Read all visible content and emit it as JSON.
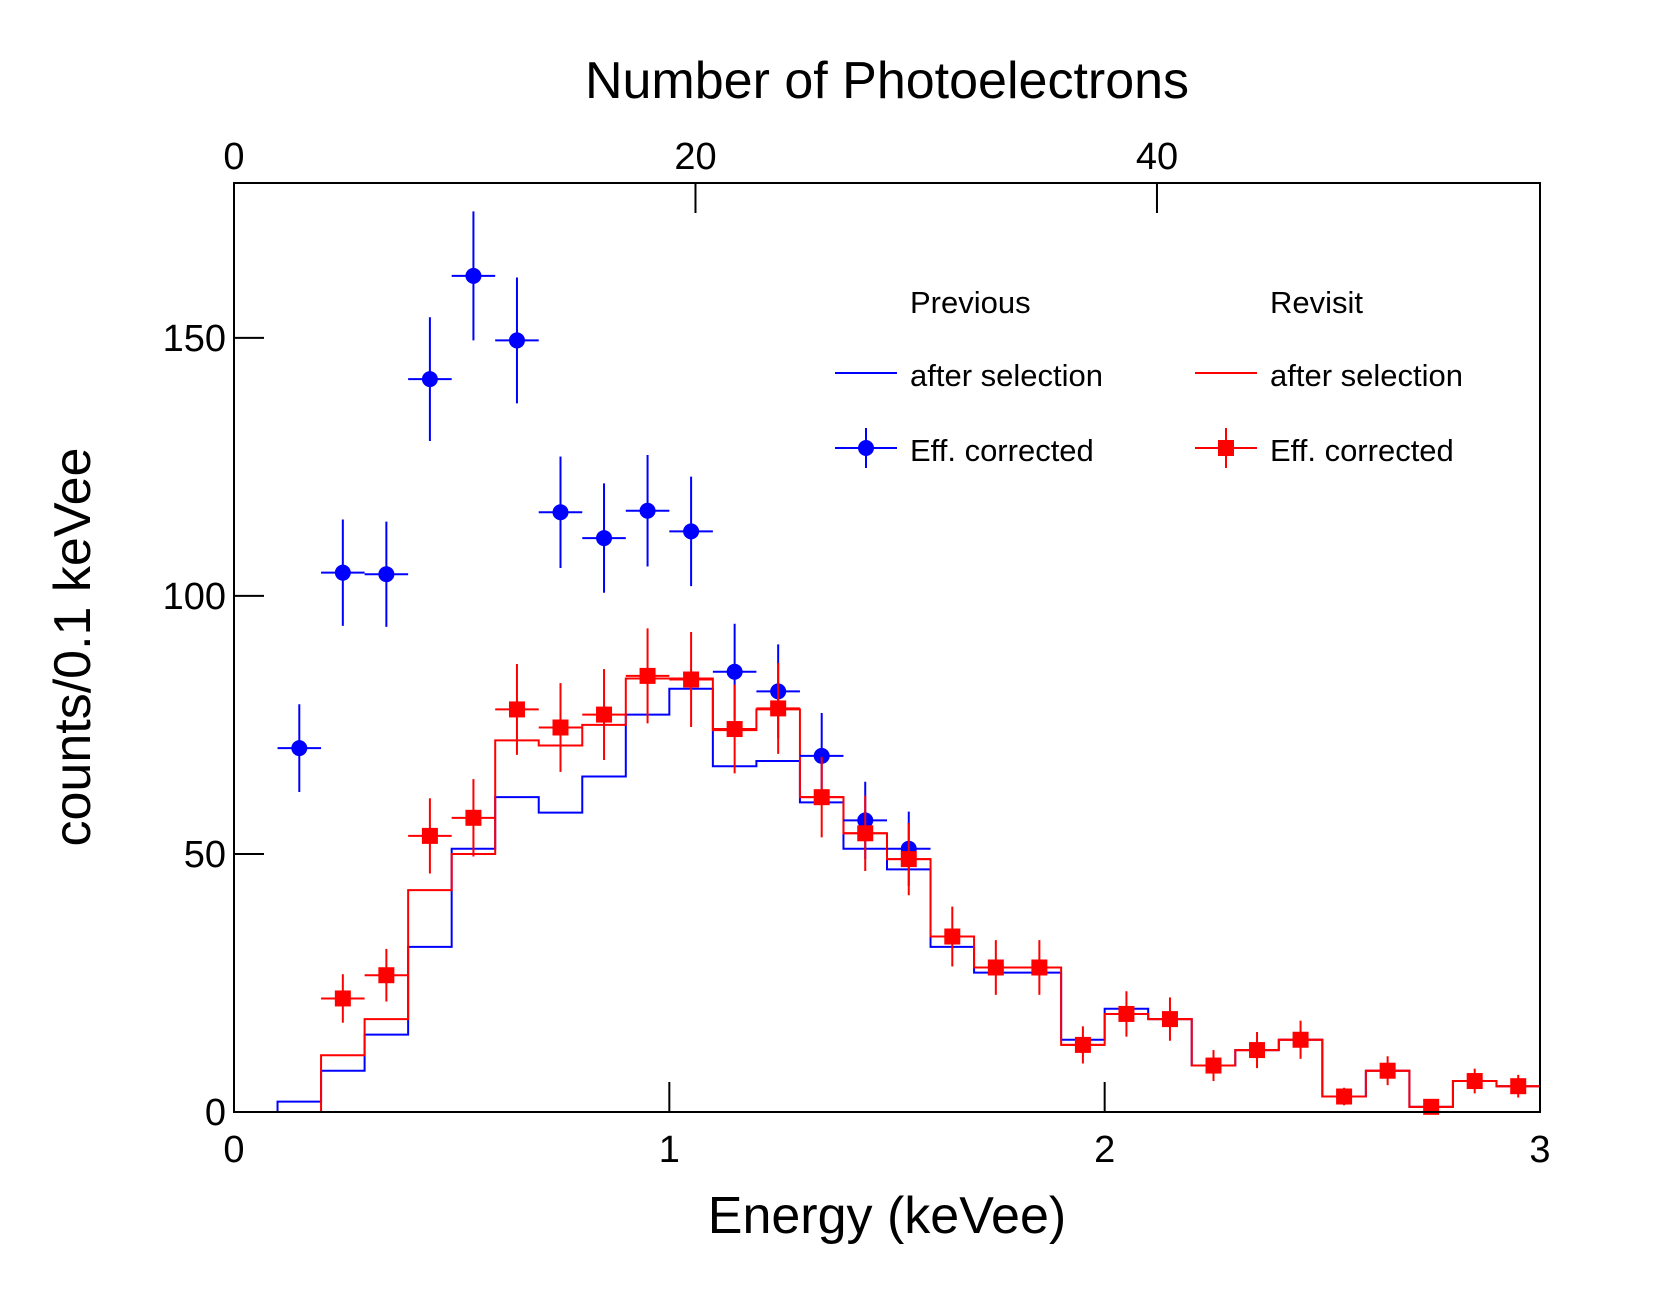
{
  "chart_data": {
    "type": "line",
    "title": "",
    "xlabel": "Energy (keVee)",
    "ylabel": "counts/0.1 keVee",
    "x2label": "Number of Photoelectrons",
    "xlim": [
      0,
      3
    ],
    "ylim": [
      0,
      180
    ],
    "x2lim": [
      0,
      56.6
    ],
    "xticks": [
      0,
      1,
      2,
      3
    ],
    "xtick_labels": [
      "0",
      "1",
      "2",
      "3"
    ],
    "yticks": [
      0,
      50,
      100,
      150
    ],
    "ytick_labels": [
      "0",
      "50",
      "100",
      "150"
    ],
    "x2ticks": [
      0,
      20,
      40
    ],
    "x2tick_labels": [
      "0",
      "20",
      "40"
    ],
    "grid": false,
    "legend": {
      "position": "top-right",
      "columns": [
        {
          "header": "Previous",
          "line_label": "after selection",
          "marker_label": "Eff. corrected"
        },
        {
          "header": "Revisit",
          "line_label": "after selection",
          "marker_label": "Eff. corrected"
        }
      ]
    },
    "colors": {
      "previous": "#0000ff",
      "revisit": "#ff0000"
    },
    "bin_width": 0.1,
    "series": [
      {
        "name": "Previous after selection",
        "kind": "histogram",
        "color": "#0000ff",
        "bin_edges": [
          0.0,
          0.1,
          0.2,
          0.3,
          0.4,
          0.5,
          0.6,
          0.7,
          0.8,
          0.9,
          1.0,
          1.1,
          1.2,
          1.3,
          1.4,
          1.5,
          1.6,
          1.7,
          1.8,
          1.9,
          2.0,
          2.1,
          2.2,
          2.3,
          2.4,
          2.5,
          2.6,
          2.7,
          2.8,
          2.9,
          3.0
        ],
        "values": [
          0,
          2,
          8,
          15,
          32,
          51,
          61,
          58,
          65,
          77,
          82,
          67,
          68,
          60,
          51,
          47,
          32,
          27,
          27,
          14,
          20,
          18,
          9,
          12,
          14,
          3,
          8,
          1,
          6,
          5
        ]
      },
      {
        "name": "Revisit after selection",
        "kind": "histogram",
        "color": "#ff0000",
        "bin_edges": [
          0.0,
          0.1,
          0.2,
          0.3,
          0.4,
          0.5,
          0.6,
          0.7,
          0.8,
          0.9,
          1.0,
          1.1,
          1.2,
          1.3,
          1.4,
          1.5,
          1.6,
          1.7,
          1.8,
          1.9,
          2.0,
          2.1,
          2.2,
          2.3,
          2.4,
          2.5,
          2.6,
          2.7,
          2.8,
          2.9,
          3.0
        ],
        "values": [
          0,
          0,
          11,
          18,
          43,
          50,
          72,
          71,
          75,
          84,
          84,
          74,
          78,
          61,
          54,
          49,
          34,
          28,
          28,
          13,
          19,
          18,
          9,
          12,
          14,
          3,
          8,
          1,
          6,
          5
        ]
      },
      {
        "name": "Previous Eff. corrected",
        "kind": "points",
        "marker": "circle",
        "color": "#0000ff",
        "x": [
          0.15,
          0.25,
          0.35,
          0.45,
          0.55,
          0.65,
          0.75,
          0.85,
          0.95,
          1.05,
          1.15,
          1.25,
          1.35,
          1.45,
          1.55
        ],
        "y": [
          70.5,
          104.5,
          104.2,
          142,
          162,
          149.5,
          116.2,
          111.2,
          116.5,
          112.5,
          85.3,
          81.5,
          69,
          56.5,
          51
        ],
        "yerr": [
          8.5,
          10.3,
          10.2,
          12,
          12.5,
          12.2,
          10.8,
          10.6,
          10.8,
          10.6,
          9.3,
          9.1,
          8.3,
          7.5,
          7.2
        ]
      },
      {
        "name": "Revisit Eff. corrected",
        "kind": "points",
        "marker": "square",
        "color": "#ff0000",
        "x": [
          0.25,
          0.35,
          0.45,
          0.55,
          0.65,
          0.75,
          0.85,
          0.95,
          1.05,
          1.15,
          1.25,
          1.35,
          1.45,
          1.55,
          1.65,
          1.75,
          1.85,
          1.95,
          2.05,
          2.15,
          2.25,
          2.35,
          2.45,
          2.55,
          2.65,
          2.75,
          2.85,
          2.95
        ],
        "y": [
          22,
          26.5,
          53.5,
          57,
          78,
          74.5,
          77,
          84.5,
          83.8,
          74.2,
          78.2,
          61,
          54,
          49,
          34,
          28,
          28,
          13,
          19,
          18,
          9,
          12,
          14,
          3,
          8,
          1,
          6,
          5
        ],
        "yerr": [
          4.7,
          5.1,
          7.3,
          7.5,
          8.8,
          8.6,
          8.8,
          9.2,
          9.2,
          8.6,
          8.8,
          7.8,
          7.3,
          7,
          5.8,
          5.3,
          5.3,
          3.6,
          4.4,
          4.2,
          3,
          3.5,
          3.7,
          1.7,
          2.8,
          1,
          2.4,
          2.2
        ]
      }
    ]
  }
}
